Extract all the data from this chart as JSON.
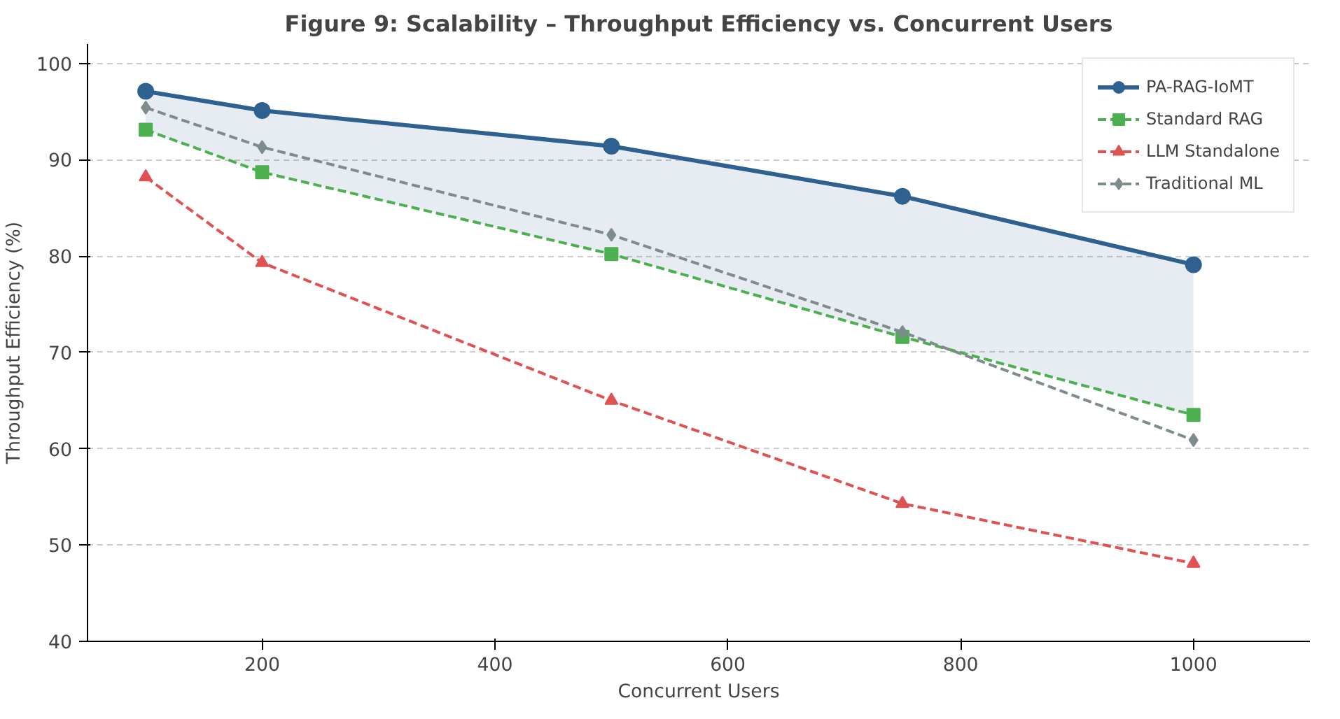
{
  "chart_data": {
    "type": "line",
    "title": "Figure 9: Scalability – Throughput Efficiency vs. Concurrent Users",
    "xlabel": "Concurrent Users",
    "ylabel": "Throughput Efficiency (%)",
    "x": [
      100,
      200,
      500,
      750,
      1000
    ],
    "series": [
      {
        "name": "PA-RAG-IoMT",
        "color": "#2e6190",
        "marker": "circle",
        "line_style": "solid",
        "values": [
          97.1,
          95.1,
          91.4,
          86.2,
          79.1
        ],
        "lower": [
          93.1,
          88.7,
          80.2,
          71.6,
          63.5
        ],
        "upper": [
          97.1,
          95.1,
          91.4,
          86.2,
          79.1
        ]
      },
      {
        "name": "Standard RAG",
        "color": "#4caf50",
        "marker": "square",
        "line_style": "dashed",
        "values": [
          93.1,
          88.7,
          80.2,
          71.6,
          63.5
        ]
      },
      {
        "name": "LLM Standalone",
        "color": "#e05252",
        "marker": "triangle",
        "line_style": "dashed",
        "values": [
          88.2,
          79.3,
          65.0,
          54.3,
          48.1
        ]
      },
      {
        "name": "Traditional ML",
        "color": "#7f8c8d",
        "marker": "diamond",
        "line_style": "dashed",
        "values": [
          95.4,
          91.3,
          82.2,
          72.1,
          60.9
        ]
      }
    ],
    "xlim": [
      50,
      1100
    ],
    "ylim": [
      40,
      102
    ],
    "xticks": [
      200,
      400,
      600,
      800,
      1000
    ],
    "yticks": [
      40,
      50,
      60,
      70,
      80,
      90,
      100
    ],
    "grid": "y",
    "legend": "top right"
  }
}
